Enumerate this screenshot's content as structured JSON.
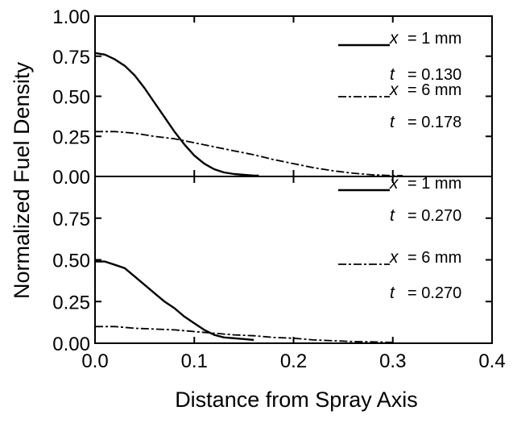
{
  "chart_data": {
    "type": "line",
    "xlabel": "Distance from Spray Axis",
    "ylabel": "Normalized Fuel Density",
    "xlim": [
      0,
      0.4
    ],
    "x_ticks": [
      "0.0",
      "0.1",
      "0.2",
      "0.3",
      "0.4"
    ],
    "grid": false,
    "legend_position": "top-right",
    "panels": [
      {
        "name": "top",
        "ylim": [
          0,
          1.0
        ],
        "y_ticks": [
          "0.00",
          "0.25",
          "0.50",
          "0.75",
          "1.00"
        ],
        "series": [
          {
            "style": "solid",
            "legend": {
              "x_label": "x",
              "x_text": "= 1 mm",
              "t_label": "t",
              "t_text": "= 0.130"
            },
            "x": [
              0.0,
              0.01,
              0.02,
              0.03,
              0.04,
              0.05,
              0.06,
              0.07,
              0.08,
              0.09,
              0.1,
              0.11,
              0.12,
              0.13,
              0.14,
              0.15,
              0.16,
              0.165
            ],
            "y": [
              0.77,
              0.76,
              0.73,
              0.69,
              0.63,
              0.55,
              0.46,
              0.37,
              0.28,
              0.2,
              0.13,
              0.08,
              0.045,
              0.025,
              0.015,
              0.01,
              0.005,
              0.005
            ]
          },
          {
            "style": "dash-dot",
            "legend": {
              "x_label": "x",
              "x_text": "= 6 mm",
              "t_label": "t",
              "t_text": "= 0.178"
            },
            "x": [
              0.0,
              0.02,
              0.04,
              0.06,
              0.08,
              0.1,
              0.12,
              0.14,
              0.16,
              0.18,
              0.2,
              0.22,
              0.24,
              0.26,
              0.28,
              0.3,
              0.31
            ],
            "y": [
              0.28,
              0.28,
              0.27,
              0.25,
              0.235,
              0.21,
              0.185,
              0.16,
              0.135,
              0.105,
              0.08,
              0.055,
              0.035,
              0.02,
              0.01,
              0.005,
              0.005
            ]
          }
        ]
      },
      {
        "name": "bottom",
        "ylim": [
          0,
          1.0
        ],
        "y_ticks": [
          "0.00",
          "0.25",
          "0.50",
          "0.75"
        ],
        "series": [
          {
            "style": "solid",
            "legend": {
              "x_label": "x",
              "x_text": "= 1 mm",
              "t_label": "t",
              "t_text": "= 0.270"
            },
            "x": [
              0.0,
              0.01,
              0.02,
              0.03,
              0.04,
              0.05,
              0.06,
              0.07,
              0.08,
              0.09,
              0.1,
              0.11,
              0.12,
              0.13,
              0.14,
              0.15,
              0.16
            ],
            "y": [
              0.49,
              0.49,
              0.47,
              0.45,
              0.4,
              0.35,
              0.3,
              0.25,
              0.21,
              0.16,
              0.12,
              0.08,
              0.05,
              0.035,
              0.03,
              0.025,
              0.02
            ]
          },
          {
            "style": "dash-dot",
            "legend": {
              "x_label": "x",
              "x_text": "= 6 mm",
              "t_label": "t",
              "t_text": "= 0.270"
            },
            "x": [
              0.0,
              0.02,
              0.04,
              0.06,
              0.08,
              0.1,
              0.12,
              0.14,
              0.16,
              0.18,
              0.2,
              0.22,
              0.24,
              0.26,
              0.28,
              0.3
            ],
            "y": [
              0.1,
              0.1,
              0.09,
              0.085,
              0.08,
              0.07,
              0.06,
              0.05,
              0.045,
              0.035,
              0.03,
              0.02,
              0.015,
              0.01,
              0.008,
              0.005
            ]
          }
        ]
      }
    ]
  }
}
